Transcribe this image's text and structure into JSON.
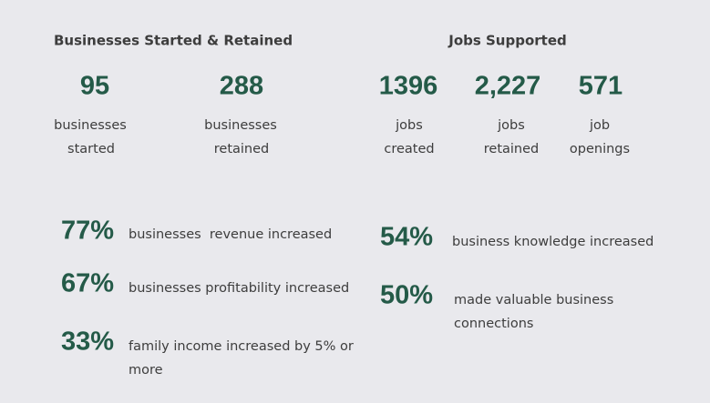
{
  "sections": [
    {
      "title": "Businesses Started & Retained",
      "stats": [
        {
          "value": "95",
          "label": [
            "businesses",
            "started"
          ]
        },
        {
          "value": "288",
          "label": [
            "businesses",
            "retained"
          ]
        }
      ]
    },
    {
      "title": "Jobs Supported",
      "stats": [
        {
          "value": "1396",
          "label": [
            "jobs",
            "created"
          ]
        },
        {
          "value": "2,227",
          "label": [
            "jobs",
            "retained"
          ]
        },
        {
          "value": "571",
          "label": [
            "job",
            "openings"
          ]
        }
      ]
    }
  ],
  "metrics": [
    {
      "value": "77%",
      "label": [
        "businesses  revenue increased"
      ]
    },
    {
      "value": "67%",
      "label": [
        "businesses profitability increased"
      ]
    },
    {
      "value": "33%",
      "label": [
        "family income increased by 5% or",
        "more"
      ]
    },
    {
      "value": "54%",
      "label": [
        "business knowledge increased"
      ]
    },
    {
      "value": "50%",
      "label": [
        "made valuable business",
        "connections"
      ]
    }
  ]
}
